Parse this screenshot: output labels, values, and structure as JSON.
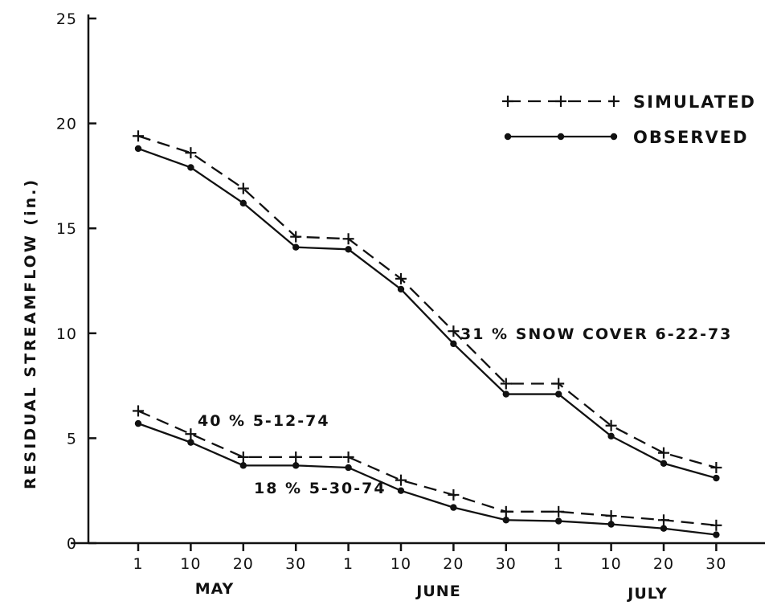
{
  "chart_data": {
    "type": "line",
    "title": "",
    "ylabel": "RESIDUAL STREAMFLOW (in.)",
    "xlabel": "",
    "ylim": [
      0,
      25
    ],
    "yticks": [
      "0",
      "5",
      "10",
      "15",
      "20",
      "25"
    ],
    "xtick_labels": [
      "1",
      "10",
      "20",
      "30",
      "1",
      "10",
      "20",
      "30",
      "1",
      "10",
      "20",
      "30"
    ],
    "months": [
      "MAY",
      "JUNE",
      "JULY"
    ],
    "legend": {
      "simulated": "SIMULATED",
      "observed": "OBSERVED",
      "position": "top-right"
    },
    "series": [
      {
        "name": "SIMULATED",
        "style": "dashed",
        "marker": "plus",
        "group": "1973",
        "values": [
          19.4,
          18.6,
          16.9,
          14.6,
          14.5,
          12.6,
          10.1,
          7.6,
          7.6,
          5.6,
          4.3,
          3.6
        ]
      },
      {
        "name": "OBSERVED",
        "style": "solid",
        "marker": "dot",
        "group": "1973",
        "values": [
          18.8,
          17.9,
          16.2,
          14.1,
          14.0,
          12.1,
          9.5,
          7.1,
          7.1,
          5.1,
          3.8,
          3.1
        ]
      },
      {
        "name": "SIMULATED",
        "style": "dashed",
        "marker": "plus",
        "group": "1974",
        "values": [
          6.3,
          5.2,
          4.1,
          4.1,
          4.1,
          3.0,
          2.3,
          1.5,
          1.5,
          1.3,
          1.1,
          0.85
        ]
      },
      {
        "name": "OBSERVED",
        "style": "solid",
        "marker": "dot",
        "group": "1974",
        "values": [
          5.7,
          4.8,
          3.7,
          3.7,
          3.6,
          2.5,
          1.7,
          1.1,
          1.05,
          0.9,
          0.7,
          0.4
        ]
      }
    ],
    "annotations": [
      {
        "text": "31 % SNOW COVER  6-22-73",
        "x": 6.1,
        "y": 10.0
      },
      {
        "text": "40 % 5-12-74",
        "x": 1.1,
        "y": 5.8
      },
      {
        "text": "18 % 5-30-74",
        "x": 2.2,
        "y": 2.5
      }
    ]
  }
}
